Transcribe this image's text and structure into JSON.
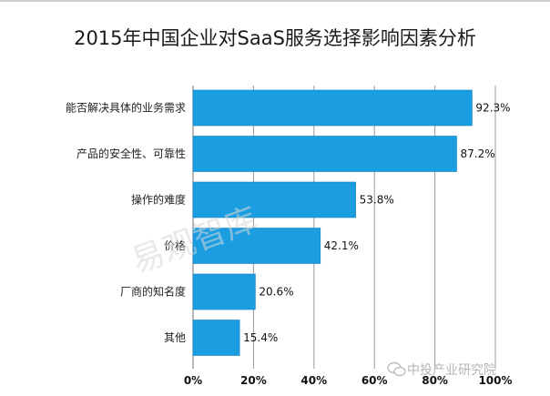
{
  "chart_data": {
    "type": "bar",
    "orientation": "horizontal",
    "title": "2015年中国企业对SaaS服务选择影响因素分析",
    "categories": [
      "能否解决具体的业务需求",
      "产品的安全性、可靠性",
      "操作的难度",
      "价格",
      "厂商的知名度",
      "其他"
    ],
    "values": [
      92.3,
      87.2,
      53.8,
      42.1,
      20.6,
      15.4
    ],
    "value_labels": [
      "92.3%",
      "87.2%",
      "53.8%",
      "42.1%",
      "20.6%",
      "15.4%"
    ],
    "xlim": [
      0,
      100
    ],
    "xticks": [
      "0%",
      "20%",
      "40%",
      "60%",
      "80%",
      "100%"
    ],
    "grid": "vertical",
    "legend": "none",
    "bar_color": "#1b9de2",
    "xlabel": "",
    "ylabel": ""
  },
  "watermark": {
    "text": "易观智库"
  },
  "source_mark": {
    "text": "中投产业研究院"
  }
}
